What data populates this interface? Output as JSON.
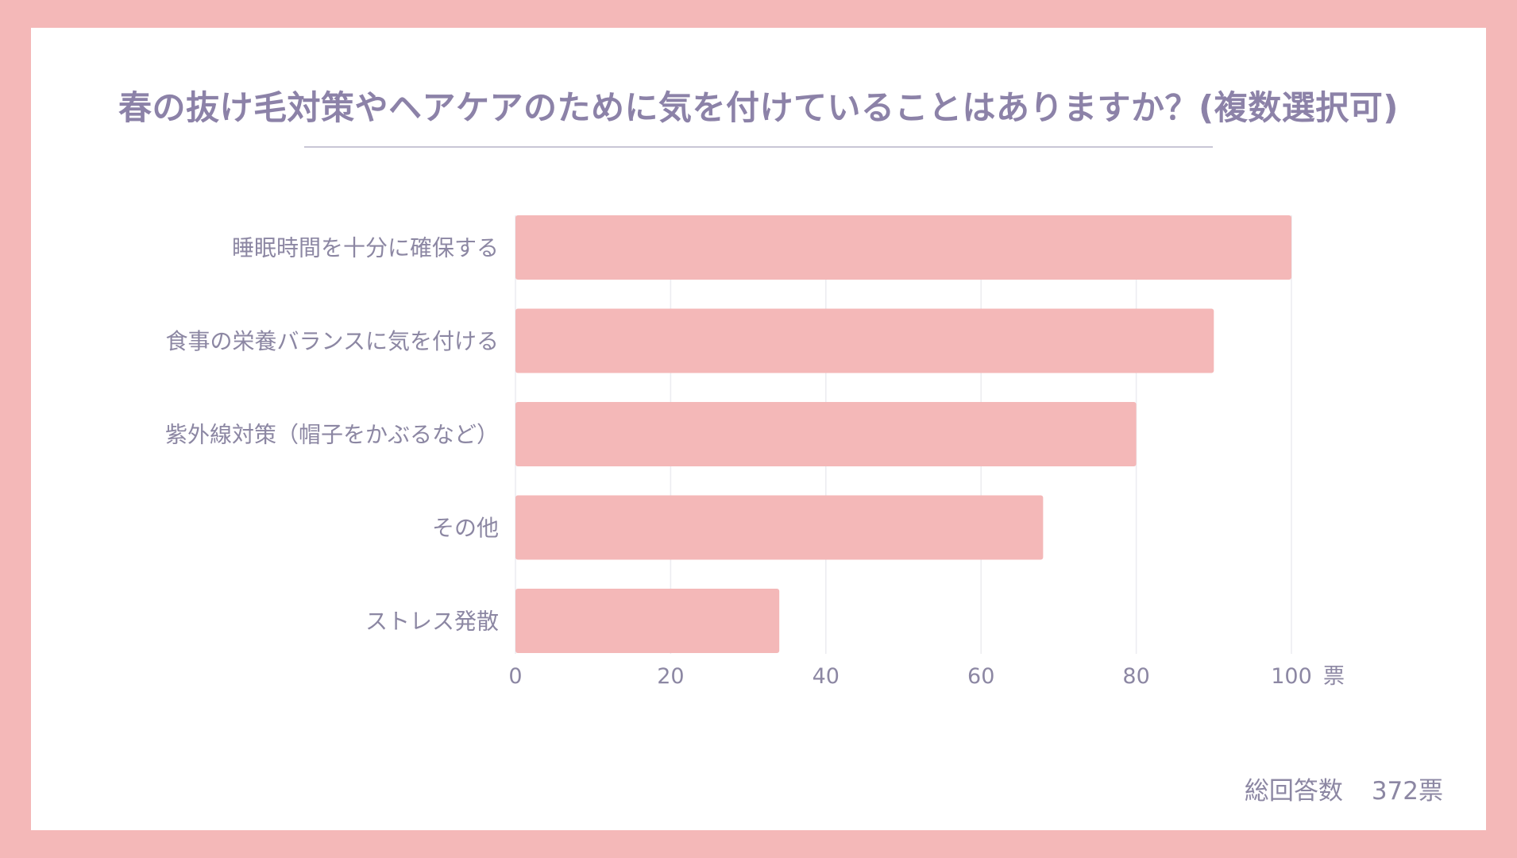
{
  "chart_data": {
    "type": "bar",
    "orientation": "horizontal",
    "title": "春の抜け毛対策やヘアケアのために気を付けていることはありますか？(複数選択可)",
    "categories": [
      "睡眠時間を十分に確保する",
      "食事の栄養バランスに気を付ける",
      "紫外線対策（帽子をかぶるなど）",
      "その他",
      "ストレス発散"
    ],
    "values": [
      100,
      90,
      80,
      68,
      34
    ],
    "xlim": [
      0,
      100
    ],
    "xticks": [
      "0",
      "20",
      "40",
      "60",
      "80",
      "100"
    ],
    "xunit": "票",
    "grid": true,
    "bar_color": "#f4b8b8"
  },
  "footer": {
    "total_label": "総回答数",
    "total_value": "372票"
  },
  "colors": {
    "background": "#f4b8b8",
    "card": "#ffffff",
    "text": "#8c87a3",
    "title": "#8c82a8"
  }
}
